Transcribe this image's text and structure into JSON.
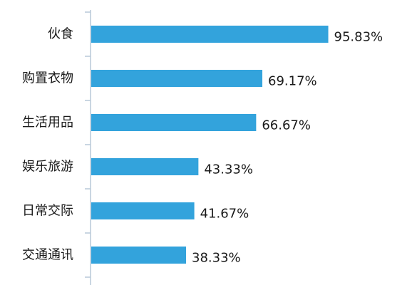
{
  "chart_data": {
    "type": "bar",
    "orientation": "horizontal",
    "categories": [
      "伙食",
      "购置衣物",
      "生活用品",
      "娱乐旅游",
      "日常交际",
      "交通通讯"
    ],
    "values": [
      95.83,
      69.17,
      66.67,
      43.33,
      41.67,
      38.33
    ],
    "value_labels": [
      "95.83%",
      "69.17%",
      "66.67%",
      "43.33%",
      "41.67%",
      "38.33%"
    ],
    "unit": "%",
    "xlim": [
      0,
      100
    ],
    "grid": false,
    "legend": "none",
    "title": "",
    "xlabel": "",
    "ylabel": ""
  },
  "colors": {
    "bar": "#33a3dc",
    "axis": "#b8c8d8",
    "text": "#1a1a1a"
  }
}
